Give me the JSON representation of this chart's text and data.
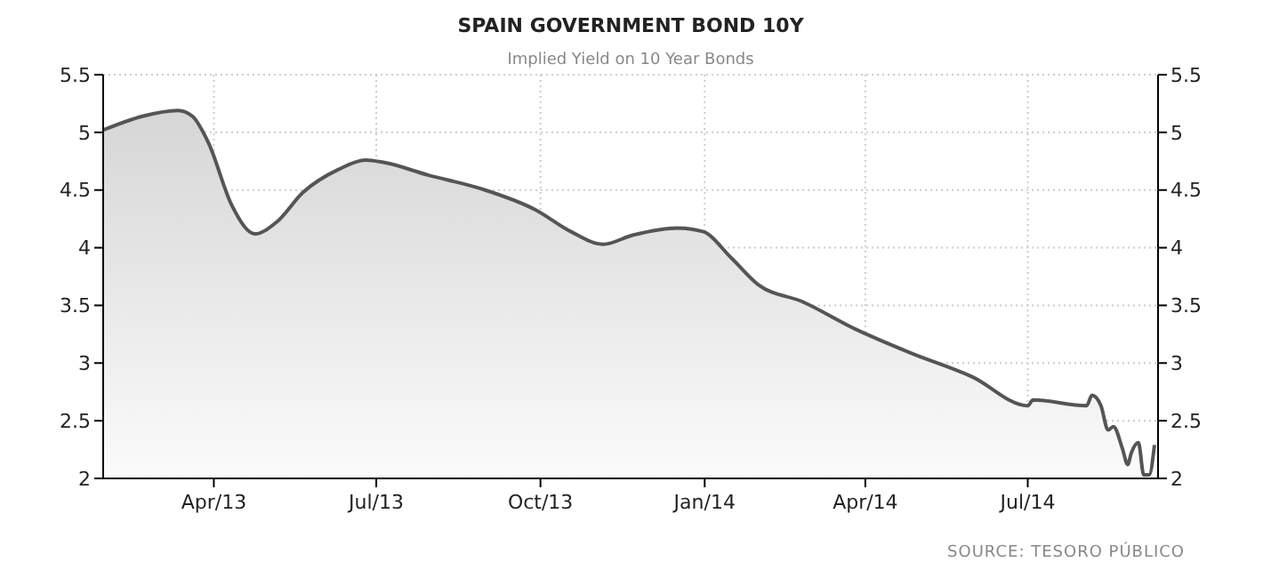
{
  "chart_data": {
    "type": "area",
    "title": "SPAIN GOVERNMENT BOND 10Y",
    "subtitle": "Implied Yield on 10 Year Bonds",
    "annotations": [
      "SOURCE: TESORO PÚBLICO"
    ],
    "x": [
      "2013-01-29",
      "2013-02-20",
      "2013-03-12",
      "2013-03-20",
      "2013-03-29",
      "2013-04-11",
      "2013-04-24",
      "2013-05-06",
      "2013-05-21",
      "2013-06-10",
      "2013-06-25",
      "2013-07-05",
      "2013-07-30",
      "2013-08-29",
      "2013-09-28",
      "2013-10-18",
      "2013-11-05",
      "2013-11-22",
      "2013-12-17",
      "2013-12-31",
      "2014-01-16",
      "2014-01-31",
      "2014-02-25",
      "2014-03-27",
      "2014-04-26",
      "2014-05-31",
      "2014-07-01",
      "2014-07-04",
      "2014-08-03",
      "2014-08-06",
      "2014-08-11",
      "2014-08-15",
      "2014-08-18",
      "2014-08-23",
      "2014-08-26",
      "2014-08-28",
      "2014-09-01",
      "2014-09-04",
      "2014-09-07",
      "2014-09-10"
    ],
    "series": [
      {
        "color": "#555555",
        "values": [
          5.02,
          5.14,
          5.19,
          5.14,
          4.91,
          4.37,
          4.12,
          4.22,
          4.48,
          4.68,
          4.76,
          4.74,
          4.63,
          4.51,
          4.33,
          4.14,
          4.03,
          4.11,
          4.17,
          4.14,
          3.91,
          3.68,
          3.53,
          3.29,
          3.09,
          2.88,
          2.63,
          2.68,
          2.63,
          2.72,
          2.63,
          2.42,
          2.45,
          2.26,
          2.12,
          2.22,
          2.31,
          2.03,
          2.03,
          2.29
        ]
      }
    ],
    "xlim": [
      "2013-01-29",
      "2014-09-12"
    ],
    "xticks": [
      {
        "value": "2013-04-01",
        "label": "Apr/13"
      },
      {
        "value": "2013-07-01",
        "label": "Jul/13"
      },
      {
        "value": "2013-10-01",
        "label": "Oct/13"
      },
      {
        "value": "2014-01-01",
        "label": "Jan/14"
      },
      {
        "value": "2014-04-01",
        "label": "Apr/14"
      },
      {
        "value": "2014-07-01",
        "label": "Jul/14"
      }
    ],
    "ylim": [
      2,
      5.5
    ],
    "yticks": [
      2,
      2.5,
      3,
      3.5,
      4,
      4.5,
      5,
      5.5
    ],
    "y2lim": [
      2,
      5.5
    ],
    "y2ticks": [
      2,
      2.5,
      3,
      3.5,
      4,
      4.5,
      5,
      5.5
    ],
    "grid": true
  }
}
